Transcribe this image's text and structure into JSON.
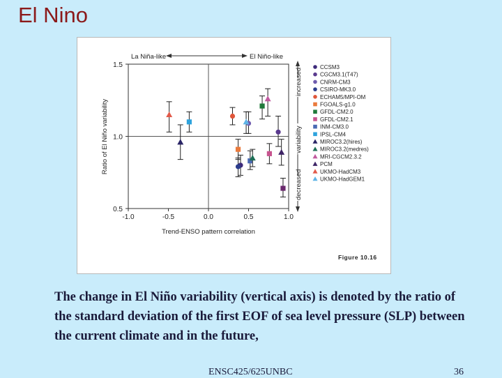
{
  "slide": {
    "title": "El Nino",
    "caption": "The change in El Niño variability (vertical axis) is denoted by the ratio of  the standard deviation of the first EOF of sea level pressure (SLP) between the current climate and in the future,",
    "footer_left": "ENSC425/625UNBC",
    "page_number": "36"
  },
  "chart_data": {
    "type": "scatter",
    "xlabel": "Trend-ENSO pattern correlation",
    "ylabel": "Ratio of El Niño variability",
    "xlim": [
      -1.0,
      1.0
    ],
    "ylim": [
      0.5,
      1.5
    ],
    "xticks": [
      "-1.0",
      "-0.5",
      "0.0",
      "0.5",
      "1.0"
    ],
    "yticks": [
      "1.5",
      "1.0",
      "0.5"
    ],
    "top_left_label": "La Niña-like",
    "top_right_label": "El Niño-like",
    "right_axis_label": {
      "top": "increased",
      "middle": "variability",
      "bottom": "decreased"
    },
    "figure_id": "Figure 10.16",
    "reference_lines": {
      "x": 0.0,
      "y": 1.0
    },
    "series": [
      {
        "name": "CCSM3",
        "color": "#3d2a7a",
        "marker": "circle",
        "x": 0.4,
        "y": 0.8,
        "err": [
          0.73,
          0.87
        ]
      },
      {
        "name": "CGCM3.1(T47)",
        "color": "#5a3a8e",
        "marker": "circle",
        "x": 0.87,
        "y": 1.03,
        "err": [
          0.93,
          1.14
        ]
      },
      {
        "name": "CNRM-CM3",
        "color": "#6f5cae",
        "marker": "circle",
        "x": 0.5,
        "y": 1.09,
        "err": [
          1.02,
          1.17
        ]
      },
      {
        "name": "CSIRO-MK3.0",
        "color": "#2b3c8c",
        "marker": "circle",
        "x": 0.37,
        "y": 0.79,
        "err": [
          0.72,
          0.85
        ]
      },
      {
        "name": "ECHAM5/MPI-OM",
        "color": "#e0563a",
        "marker": "circle",
        "x": 0.3,
        "y": 1.14,
        "err": [
          1.08,
          1.2
        ]
      },
      {
        "name": "FGOALS-g1.0",
        "color": "#ea7a3c",
        "marker": "square",
        "x": 0.37,
        "y": 0.91,
        "err": [
          0.84,
          0.98
        ]
      },
      {
        "name": "GFDL-CM2.0",
        "color": "#1f7a3a",
        "marker": "square",
        "x": 0.67,
        "y": 1.21,
        "err": [
          1.12,
          1.28
        ]
      },
      {
        "name": "GFDL-CM2.1",
        "color": "#c7548f",
        "marker": "square",
        "x": 0.76,
        "y": 0.88,
        "err": [
          0.81,
          0.95
        ]
      },
      {
        "name": "INM-CM3.0",
        "color": "#4a6ab3",
        "marker": "square",
        "x": 0.52,
        "y": 0.83,
        "err": [
          0.77,
          0.9
        ]
      },
      {
        "name": "IPSL-CM4",
        "color": "#2ea3dd",
        "marker": "square",
        "x": -0.24,
        "y": 1.1,
        "err": [
          1.03,
          1.17
        ]
      },
      {
        "name": "MIROC3.2(hires)",
        "color": "#2a2466",
        "marker": "triangle",
        "x": -0.35,
        "y": 0.96,
        "err": [
          0.84,
          1.08
        ]
      },
      {
        "name": "MIROC3.2(medres)",
        "color": "#1d6e55",
        "marker": "triangle",
        "x": 0.55,
        "y": 0.85,
        "err": [
          0.79,
          0.91
        ]
      },
      {
        "name": "MRI-CGCM2.3.2",
        "color": "#c25aa0",
        "marker": "triangle",
        "x": 0.74,
        "y": 1.26,
        "err": [
          1.14,
          1.33
        ]
      },
      {
        "name": "PCM",
        "color": "#3e2466",
        "marker": "triangle",
        "x": 0.91,
        "y": 0.89,
        "err": [
          0.8,
          0.98
        ]
      },
      {
        "name": "UKMO-HadCM3",
        "color": "#e25a4a",
        "marker": "triangle",
        "x": -0.49,
        "y": 1.15,
        "err": [
          1.03,
          1.24
        ]
      },
      {
        "name": "UKMO-HadGEM1",
        "color": "#5fb4e6",
        "marker": "triangle",
        "x": 0.47,
        "y": 1.1,
        "err": [
          1.02,
          1.17
        ]
      }
    ],
    "extra_points": [
      {
        "color": "#6b2a6e",
        "marker": "square",
        "x": 0.93,
        "y": 0.64,
        "err": [
          0.58,
          0.71
        ]
      }
    ],
    "grid": false,
    "legend_placement": "right"
  }
}
